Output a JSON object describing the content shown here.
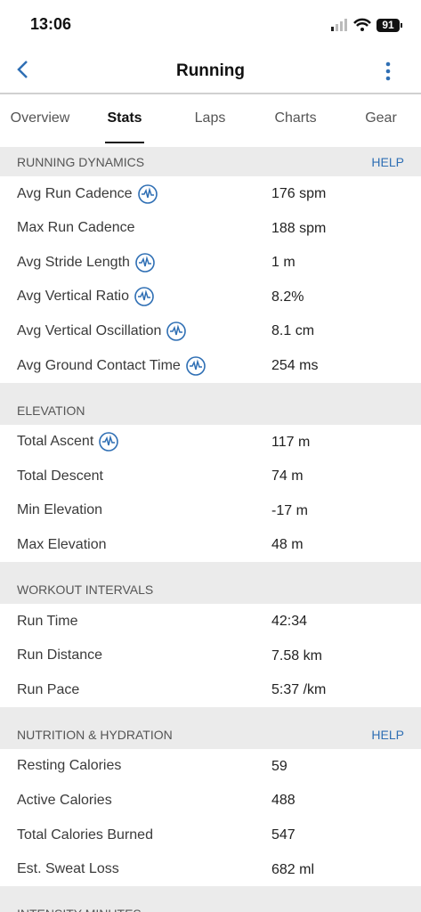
{
  "status_bar": {
    "time": "13:06",
    "battery": "91"
  },
  "header": {
    "title": "Running"
  },
  "tabs": {
    "items": [
      "Overview",
      "Stats",
      "Laps",
      "Charts",
      "Gear"
    ],
    "active": 1
  },
  "sections": [
    {
      "title": "RUNNING DYNAMICS",
      "help": "HELP",
      "rows": [
        {
          "label": "Avg Run Cadence",
          "value": "176 spm",
          "icon": true
        },
        {
          "label": "Max Run Cadence",
          "value": "188 spm"
        },
        {
          "label": "Avg Stride Length",
          "value": "1 m",
          "icon": true
        },
        {
          "label": "Avg Vertical Ratio",
          "value": "8.2%",
          "icon": true
        },
        {
          "label": "Avg Vertical Oscillation",
          "value": "8.1 cm",
          "icon": true
        },
        {
          "label": "Avg Ground Contact Time",
          "value": "254 ms",
          "icon": true
        }
      ]
    },
    {
      "title": "ELEVATION",
      "rows": [
        {
          "label": "Total Ascent",
          "value": "117 m",
          "icon": true
        },
        {
          "label": "Total Descent",
          "value": "74 m"
        },
        {
          "label": "Min Elevation",
          "value": "-17 m"
        },
        {
          "label": "Max Elevation",
          "value": "48 m"
        }
      ]
    },
    {
      "title": "WORKOUT INTERVALS",
      "rows": [
        {
          "label": "Run Time",
          "value": "42:34"
        },
        {
          "label": "Run Distance",
          "value": "7.58 km"
        },
        {
          "label": "Run Pace",
          "value": "5:37 /km"
        }
      ]
    },
    {
      "title": "NUTRITION & HYDRATION",
      "help": "HELP",
      "rows": [
        {
          "label": "Resting Calories",
          "value": "59"
        },
        {
          "label": "Active Calories",
          "value": "488"
        },
        {
          "label": "Total Calories Burned",
          "value": "547"
        },
        {
          "label": "Est. Sweat Loss",
          "value": "682 ml"
        }
      ]
    },
    {
      "title": "INTENSITY MINUTES",
      "rows": []
    }
  ]
}
